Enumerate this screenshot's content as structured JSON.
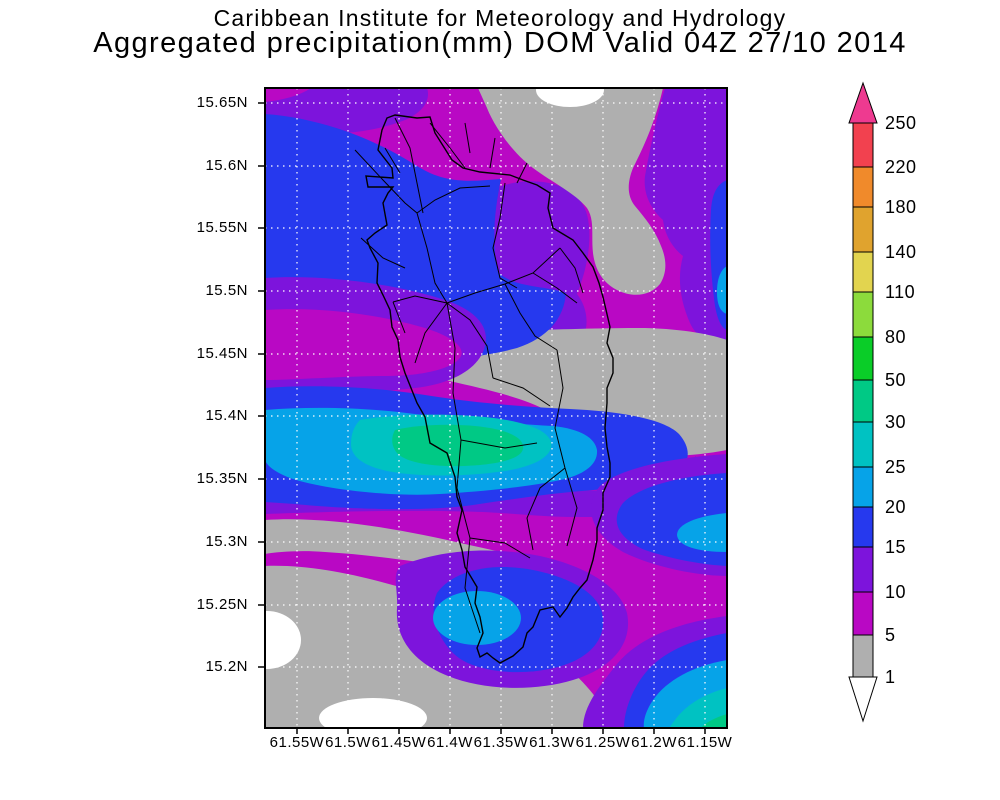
{
  "title": {
    "line1": "Caribbean Institute for Meteorology and Hydrology",
    "line2": "Aggregated precipitation(mm) DOM Valid 04Z 27/10 2014"
  },
  "map": {
    "y_axis": {
      "ticks": [
        "15.65N",
        "15.6N",
        "15.55N",
        "15.5N",
        "15.45N",
        "15.4N",
        "15.35N",
        "15.3N",
        "15.25N",
        "15.2N"
      ]
    },
    "x_axis": {
      "ticks": [
        "61.55W",
        "61.5W",
        "61.45W",
        "61.4W",
        "61.35W",
        "61.3W",
        "61.25W",
        "61.2W",
        "61.15W"
      ]
    }
  },
  "legend": {
    "boundary_labels": [
      "250",
      "220",
      "180",
      "140",
      "110",
      "80",
      "50",
      "30",
      "25",
      "20",
      "15",
      "10",
      "5",
      "1"
    ],
    "segment_colors": [
      "#F2414F",
      "#F08A2B",
      "#E0A32E",
      "#E2D44F",
      "#8CDB3C",
      "#0ACD28",
      "#00C985",
      "#00C2C2",
      "#06A3E8",
      "#2639EE",
      "#7D14DC",
      "#B908C4",
      "#AFAFAF"
    ],
    "arrow_top_color": "#EE3A90",
    "arrow_bottom_color": "#FFFFFF"
  },
  "palette": {
    "white": "#FFFFFF",
    "gray": "#AFAFAF",
    "magenta": "#B908C4",
    "purple": "#7D14DC",
    "blue": "#2639EE",
    "light_blue": "#06A3E8",
    "teal": "#00C2C2",
    "spring_green": "#00C985",
    "grid": "#FFFFFF",
    "frame": "#000000"
  }
}
